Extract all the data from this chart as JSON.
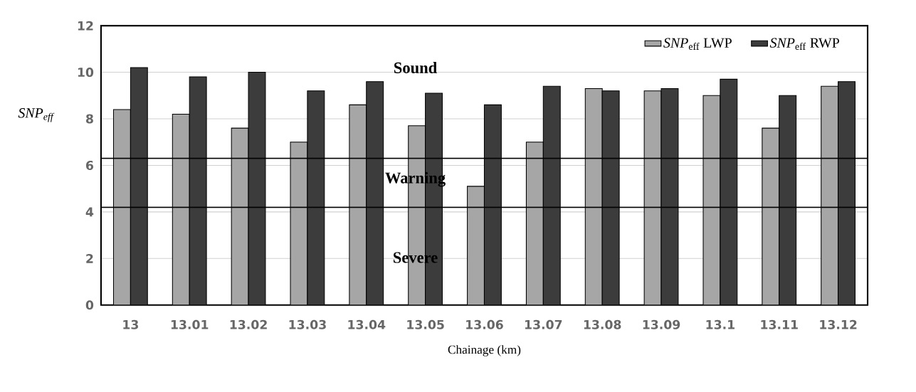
{
  "chart_data": {
    "type": "bar",
    "xlabel": "Chainage (km)",
    "ylabel": "SNP$_{eff}$",
    "categories": [
      "13",
      "13.01",
      "13.02",
      "13.03",
      "13.04",
      "13.05",
      "13.06",
      "13.07",
      "13.08",
      "13.09",
      "13.1",
      "13.11",
      "13.12"
    ],
    "series": [
      {
        "name": "*SNP*$_{eff}$ LWP",
        "color": "#a6a6a6",
        "values": [
          8.4,
          8.2,
          7.6,
          7.0,
          8.6,
          7.7,
          5.1,
          7.0,
          9.3,
          9.2,
          9.0,
          7.6,
          9.4
        ]
      },
      {
        "name": "*SNP*$_{eff}$ RWP",
        "color": "#3c3c3c",
        "values": [
          10.2,
          9.8,
          10.0,
          9.2,
          9.6,
          9.1,
          8.6,
          9.4,
          9.2,
          9.3,
          9.7,
          9.0,
          9.6
        ]
      }
    ],
    "ylim": [
      0,
      12
    ],
    "yticks": [
      0,
      2,
      4,
      6,
      8,
      10,
      12
    ],
    "ref_lines": [
      {
        "axis": "y",
        "value": 6.3
      },
      {
        "axis": "y",
        "value": 4.2
      }
    ],
    "annotations": [
      "Sound",
      "Warning",
      "Severe"
    ],
    "grid": "y",
    "legend": "top right"
  }
}
